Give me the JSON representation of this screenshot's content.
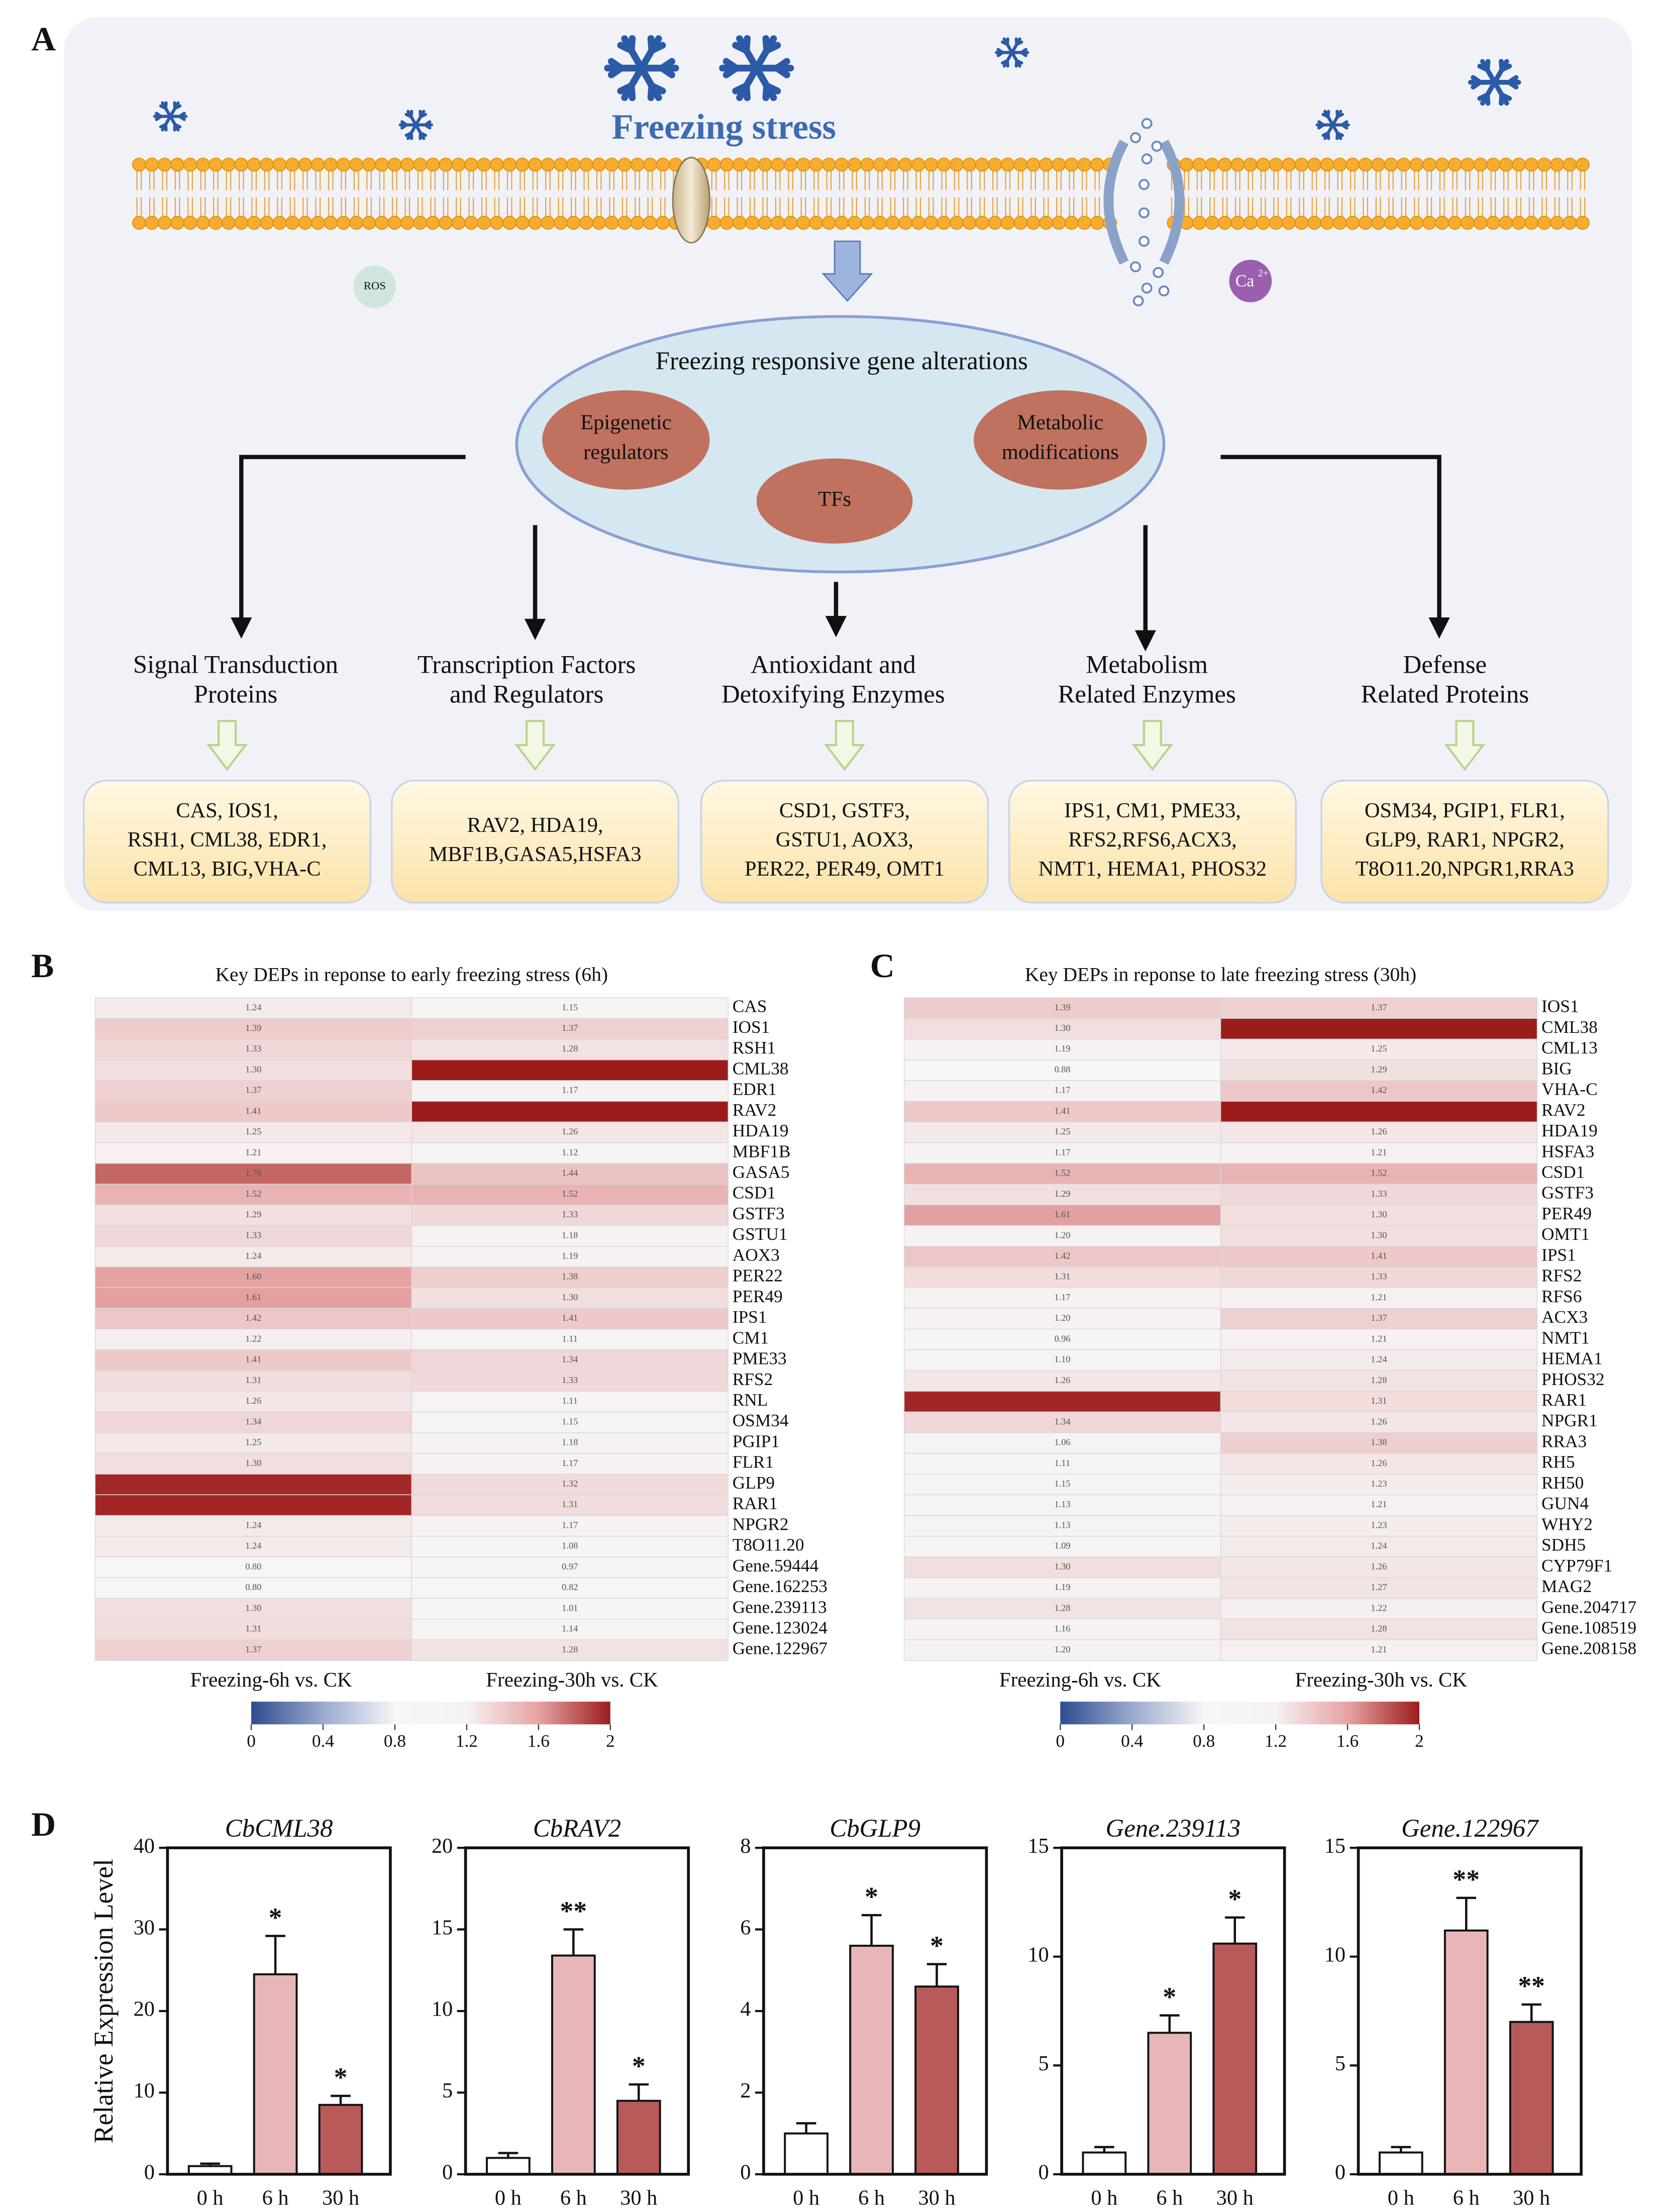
{
  "panel_labels": [
    "A",
    "B",
    "C",
    "D"
  ],
  "diagram": {
    "title": "Freezing stress",
    "ros": "ROS",
    "calcium": {
      "symbol": "Ca",
      "charge": "2+"
    },
    "center": {
      "label": "Freezing responsive gene alterations",
      "epigenetic": [
        "Epigenetic",
        "regulators"
      ],
      "tfs": "TFs",
      "metabolic": [
        "Metabolic",
        "modifications"
      ]
    },
    "categories": [
      {
        "title": [
          "Signal Transduction",
          "Proteins"
        ],
        "genes": [
          "CAS, IOS1,",
          "RSH1, CML38, EDR1,",
          "CML13, BIG,VHA-C"
        ]
      },
      {
        "title": [
          "Transcription Factors",
          "and Regulators"
        ],
        "genes": [
          "RAV2, HDA19,",
          "MBF1B,GASA5,HSFA3"
        ]
      },
      {
        "title": [
          "Antioxidant and",
          "Detoxifying Enzymes"
        ],
        "genes": [
          "CSD1, GSTF3,",
          "GSTU1, AOX3,",
          "PER22, PER49, OMT1"
        ]
      },
      {
        "title": [
          "Metabolism",
          "Related Enzymes"
        ],
        "genes": [
          "IPS1, CM1, PME33,",
          "RFS2,RFS6,ACX3,",
          "NMT1, HEMA1, PHOS32"
        ]
      },
      {
        "title": [
          "Defense",
          "Related Proteins"
        ],
        "genes": [
          "OSM34, PGIP1, FLR1,",
          "GLP9, RAR1, NPGR2,",
          "T8O11.20,NPGR1,RRA3"
        ]
      }
    ]
  },
  "chart_data": [
    {
      "type": "heatmap",
      "title": "Key DEPs in reponse to early freezing stress (6h)",
      "categories": [
        "CAS",
        "IOS1",
        "RSH1",
        "CML38",
        "EDR1",
        "RAV2",
        "HDA19",
        "MBF1B",
        "GASA5",
        "CSD1",
        "GSTF3",
        "GSTU1",
        "AOX3",
        "PER22",
        "PER49",
        "IPS1",
        "CM1",
        "PME33",
        "RFS2",
        "RNL",
        "OSM34",
        "PGIP1",
        "FLR1",
        "GLP9",
        "RAR1",
        "NPGR2",
        "T8O11.20",
        "Gene.59444",
        "Gene.162253",
        "Gene.239113",
        "Gene.123024",
        "Gene.122967"
      ],
      "series": [
        {
          "name": "Freezing-6h vs. CK",
          "values": [
            1.24,
            1.39,
            1.33,
            1.3,
            1.37,
            1.41,
            1.25,
            1.21,
            1.78,
            1.52,
            1.29,
            1.33,
            1.24,
            1.6,
            1.61,
            1.42,
            1.22,
            1.41,
            1.31,
            1.26,
            1.34,
            1.25,
            1.3,
            1.96,
            1.97,
            1.24,
            1.24,
            0.8,
            0.8,
            1.3,
            1.31,
            1.37
          ],
          "value_labels": [
            "1.24",
            "1.39",
            "1.33",
            "1.30",
            "1.37",
            "1.41",
            "1.25",
            "1.21",
            "1.78",
            "1.52",
            "1.29",
            "1.33",
            "1.24",
            "1.60",
            "1.61",
            "1.42",
            "1.22",
            "1.41",
            "1.31",
            "1.26",
            "1.34",
            "1.25",
            "1.30",
            null,
            null,
            "1.24",
            "1.24",
            "0.80",
            "0.80",
            "1.30",
            "1.31",
            "1.37"
          ]
        },
        {
          "name": "Freezing-30h vs. CK",
          "values": [
            1.15,
            1.37,
            1.28,
            2.05,
            1.17,
            2.05,
            1.26,
            1.12,
            1.44,
            1.52,
            1.33,
            1.18,
            1.19,
            1.38,
            1.3,
            1.41,
            1.11,
            1.34,
            1.33,
            1.11,
            1.15,
            1.18,
            1.17,
            1.32,
            1.31,
            1.17,
            1.08,
            0.97,
            0.82,
            1.01,
            1.14,
            1.28
          ],
          "value_labels": [
            "1.15",
            "1.37",
            "1.28",
            null,
            "1.17",
            null,
            "1.26",
            "1.12",
            "1.44",
            "1.52",
            "1.33",
            "1.18",
            "1.19",
            "1.38",
            "1.30",
            "1.41",
            "1.11",
            "1.34",
            "1.33",
            "1.11",
            "1.15",
            "1.18",
            "1.17",
            "1.32",
            "1.31",
            "1.17",
            "1.08",
            "0.97",
            "0.82",
            "1.01",
            "1.14",
            "1.28"
          ]
        }
      ],
      "clim": [
        0,
        2
      ],
      "cticks": [
        0,
        0.4,
        0.8,
        1.2,
        1.6,
        2
      ],
      "colorscale": [
        "#2f4c8f",
        "#9aaace",
        "#f6f6f8",
        "#f6f2f2",
        "#e6a3a3",
        "#9c1c1c"
      ]
    },
    {
      "type": "heatmap",
      "title": "Key DEPs in reponse to late freezing stress (30h)",
      "categories": [
        "IOS1",
        "CML38",
        "CML13",
        "BIG",
        "VHA-C",
        "RAV2",
        "HDA19",
        "HSFA3",
        "CSD1",
        "GSTF3",
        "PER49",
        "OMT1",
        "IPS1",
        "RFS2",
        "RFS6",
        "ACX3",
        "NMT1",
        "HEMA1",
        "PHOS32",
        "RAR1",
        "NPGR1",
        "RRA3",
        "RH5",
        "RH50",
        "GUN4",
        "WHY2",
        "SDH5",
        "CYP79F1",
        "MAG2",
        "Gene.204717",
        "Gene.108519",
        "Gene.208158"
      ],
      "series": [
        {
          "name": "Freezing-6h vs. CK",
          "values": [
            1.39,
            1.3,
            1.19,
            0.88,
            1.17,
            1.41,
            1.25,
            1.17,
            1.52,
            1.29,
            1.61,
            1.2,
            1.42,
            1.31,
            1.17,
            1.2,
            0.96,
            1.1,
            1.26,
            1.97,
            1.34,
            1.06,
            1.11,
            1.15,
            1.13,
            1.13,
            1.09,
            1.3,
            1.19,
            1.28,
            1.16,
            1.2
          ],
          "value_labels": [
            "1.39",
            "1.30",
            "1.19",
            "0.88",
            "1.17",
            "1.41",
            "1.25",
            "1.17",
            "1.52",
            "1.29",
            "1.61",
            "1.20",
            "1.42",
            "1.31",
            "1.17",
            "1.20",
            "0.96",
            "1.10",
            "1.26",
            null,
            "1.34",
            "1.06",
            "1.11",
            "1.15",
            "1.13",
            "1.13",
            "1.09",
            "1.30",
            "1.19",
            "1.28",
            "1.16",
            "1.20"
          ]
        },
        {
          "name": "Freezing-30h vs. CK",
          "values": [
            1.37,
            2.05,
            1.25,
            1.29,
            1.42,
            2.05,
            1.26,
            1.21,
            1.52,
            1.33,
            1.3,
            1.3,
            1.41,
            1.33,
            1.21,
            1.37,
            1.21,
            1.24,
            1.28,
            1.31,
            1.26,
            1.38,
            1.26,
            1.23,
            1.21,
            1.23,
            1.24,
            1.26,
            1.27,
            1.22,
            1.28,
            1.21
          ],
          "value_labels": [
            "1.37",
            null,
            "1.25",
            "1.29",
            "1.42",
            null,
            "1.26",
            "1.21",
            "1.52",
            "1.33",
            "1.30",
            "1.30",
            "1.41",
            "1.33",
            "1.21",
            "1.37",
            "1.21",
            "1.24",
            "1.28",
            "1.31",
            "1.26",
            "1.38",
            "1.26",
            "1.23",
            "1.21",
            "1.23",
            "1.24",
            "1.26",
            "1.27",
            "1.22",
            "1.28",
            "1.21"
          ]
        }
      ],
      "clim": [
        0,
        2
      ],
      "cticks": [
        0,
        0.4,
        0.8,
        1.2,
        1.6,
        2
      ],
      "colorscale": [
        "#2f4c8f",
        "#9aaace",
        "#f6f6f8",
        "#f6f2f2",
        "#e6a3a3",
        "#9c1c1c"
      ]
    },
    {
      "type": "bar",
      "title": "CbCML38",
      "ylabel": "Relative Expression Level",
      "categories": [
        "0 h",
        "6 h",
        "30 h"
      ],
      "values": [
        1,
        24.5,
        8.5
      ],
      "errors": [
        0.3,
        4.7,
        1.1
      ],
      "annotations": [
        null,
        "*",
        "*"
      ],
      "colors": [
        "#ffffff",
        "#e8b6b6",
        "#b85a5a"
      ],
      "ylim": [
        0,
        40
      ],
      "yticks": [
        0,
        10,
        20,
        30,
        40
      ]
    },
    {
      "type": "bar",
      "title": "CbRAV2",
      "categories": [
        "0 h",
        "6 h",
        "30 h"
      ],
      "values": [
        1,
        13.4,
        4.5
      ],
      "errors": [
        0.3,
        1.6,
        1.0
      ],
      "annotations": [
        null,
        "**",
        "*"
      ],
      "colors": [
        "#ffffff",
        "#e8b6b6",
        "#b85a5a"
      ],
      "ylim": [
        0,
        20
      ],
      "yticks": [
        0,
        5,
        10,
        15,
        20
      ]
    },
    {
      "type": "bar",
      "title": "CbGLP9",
      "categories": [
        "0 h",
        "6 h",
        "30 h"
      ],
      "values": [
        1,
        5.6,
        4.6
      ],
      "errors": [
        0.25,
        0.75,
        0.55
      ],
      "annotations": [
        null,
        "*",
        "*"
      ],
      "colors": [
        "#ffffff",
        "#e8b6b6",
        "#b85a5a"
      ],
      "ylim": [
        0,
        8
      ],
      "yticks": [
        0,
        2,
        4,
        6,
        8
      ]
    },
    {
      "type": "bar",
      "title": "Gene.239113",
      "categories": [
        "0 h",
        "6 h",
        "30 h"
      ],
      "values": [
        1,
        6.5,
        10.6
      ],
      "errors": [
        0.25,
        0.8,
        1.2
      ],
      "annotations": [
        null,
        "*",
        "*"
      ],
      "colors": [
        "#ffffff",
        "#e8b6b6",
        "#b85a5a"
      ],
      "ylim": [
        0,
        15
      ],
      "yticks": [
        0,
        5,
        10,
        15
      ]
    },
    {
      "type": "bar",
      "title": "Gene.122967",
      "categories": [
        "0 h",
        "6 h",
        "30 h"
      ],
      "values": [
        1,
        11.2,
        7.0
      ],
      "errors": [
        0.25,
        1.5,
        0.8
      ],
      "annotations": [
        null,
        "**",
        "**"
      ],
      "colors": [
        "#ffffff",
        "#e8b6b6",
        "#b85a5a"
      ],
      "ylim": [
        0,
        15
      ],
      "yticks": [
        0,
        5,
        10,
        15
      ]
    }
  ]
}
